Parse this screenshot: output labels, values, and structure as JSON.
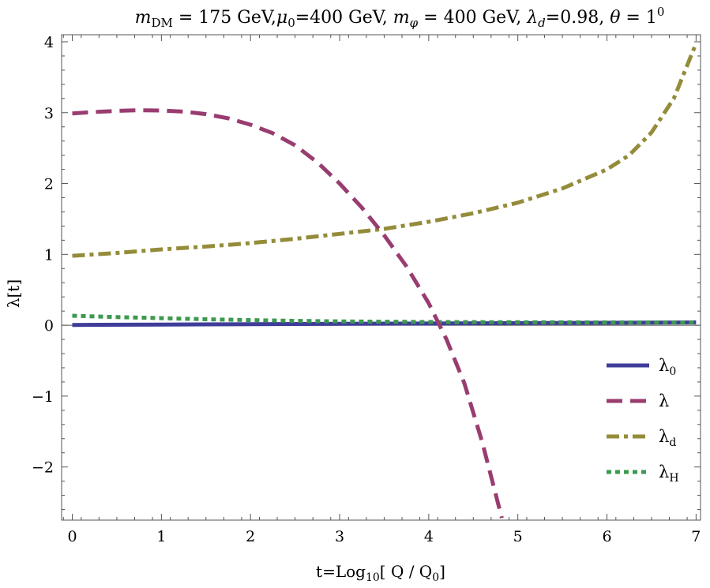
{
  "chart_data": {
    "type": "line",
    "title": "m_DM = 175 GeV, μ0=400 GeV, m_φ = 400 GeV, λ_d=0.98, θ = 1°",
    "title_parts": {
      "m": "m",
      "dm_sub": "DM",
      "p1": " = 175 GeV,",
      "mu": "μ",
      "mu_sub": "0",
      "p2": "=400 GeV, ",
      "m2": "m",
      "phi_sub": "φ",
      "p3": " = 400 GeV, ",
      "lam": "λ",
      "lam_sub": "d",
      "p4": "=0.98, ",
      "theta": "θ",
      "p5": " = 1",
      "deg": "0"
    },
    "xlabel_parts": {
      "main": "t=Log",
      "sub": "10",
      "rest": "[ Q / Q",
      "q_sub": "0",
      "end": "]"
    },
    "ylabel": "λ[t]",
    "xlim": [
      -0.12,
      7.05
    ],
    "ylim": [
      -2.75,
      4.1
    ],
    "xticks": [
      0,
      1,
      2,
      3,
      4,
      5,
      6,
      7
    ],
    "yticks": [
      -2,
      -1,
      0,
      1,
      2,
      3,
      4
    ],
    "legend_position": "bottom-right",
    "series": [
      {
        "name": "λ",
        "name_sub": "0",
        "color": "#3f3d99",
        "style": "solid",
        "points": [
          [
            0,
            0.005
          ],
          [
            1,
            0.01
          ],
          [
            2,
            0.015
          ],
          [
            3,
            0.02
          ],
          [
            4,
            0.025
          ],
          [
            5,
            0.03
          ],
          [
            6,
            0.035
          ],
          [
            7,
            0.04
          ]
        ]
      },
      {
        "name": "λ",
        "name_sub": "",
        "color": "#993d71",
        "style": "dashed",
        "points": [
          [
            0,
            2.99
          ],
          [
            0.25,
            3.01
          ],
          [
            0.5,
            3.025
          ],
          [
            0.75,
            3.035
          ],
          [
            1,
            3.03
          ],
          [
            1.25,
            3.015
          ],
          [
            1.5,
            2.98
          ],
          [
            1.75,
            2.92
          ],
          [
            2,
            2.83
          ],
          [
            2.25,
            2.71
          ],
          [
            2.5,
            2.54
          ],
          [
            2.75,
            2.3
          ],
          [
            3,
            2.0
          ],
          [
            3.25,
            1.66
          ],
          [
            3.5,
            1.27
          ],
          [
            3.75,
            0.83
          ],
          [
            4,
            0.31
          ],
          [
            4.2,
            -0.2
          ],
          [
            4.4,
            -0.82
          ],
          [
            4.6,
            -1.65
          ],
          [
            4.82,
            -2.72
          ]
        ]
      },
      {
        "name": "λ",
        "name_sub": "d",
        "color": "#948c3a",
        "style": "dashdot",
        "points": [
          [
            0,
            0.98
          ],
          [
            0.5,
            1.02
          ],
          [
            1,
            1.07
          ],
          [
            1.5,
            1.11
          ],
          [
            2,
            1.16
          ],
          [
            2.5,
            1.22
          ],
          [
            3,
            1.29
          ],
          [
            3.5,
            1.36
          ],
          [
            4,
            1.46
          ],
          [
            4.5,
            1.58
          ],
          [
            5,
            1.73
          ],
          [
            5.5,
            1.93
          ],
          [
            6,
            2.2
          ],
          [
            6.25,
            2.4
          ],
          [
            6.5,
            2.72
          ],
          [
            6.75,
            3.2
          ],
          [
            7,
            3.98
          ]
        ]
      },
      {
        "name": "λ",
        "name_sub": "H",
        "color": "#3d9950",
        "style": "dotted",
        "points": [
          [
            0,
            0.135
          ],
          [
            0.5,
            0.115
          ],
          [
            1,
            0.1
          ],
          [
            1.5,
            0.085
          ],
          [
            2,
            0.072
          ],
          [
            2.5,
            0.062
          ],
          [
            3,
            0.055
          ],
          [
            3.5,
            0.05
          ],
          [
            4,
            0.046
          ],
          [
            5,
            0.042
          ],
          [
            6,
            0.04
          ],
          [
            7,
            0.038
          ]
        ]
      }
    ]
  }
}
